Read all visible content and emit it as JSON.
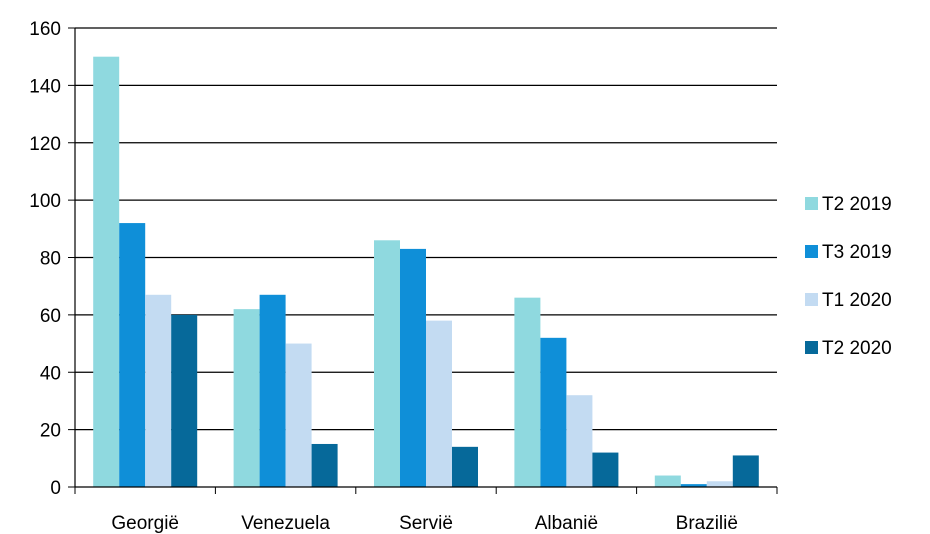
{
  "chart_data": {
    "type": "bar",
    "title": "",
    "xlabel": "",
    "ylabel": "",
    "categories": [
      "Georgië",
      "Venezuela",
      "Servië",
      "Albanië",
      "Brazilië"
    ],
    "series": [
      {
        "name": "T2 2019",
        "color": "#8FD9DF",
        "values": [
          150,
          62,
          86,
          66,
          4
        ]
      },
      {
        "name": "T3 2019",
        "color": "#0F8FD8",
        "values": [
          92,
          67,
          83,
          52,
          1
        ]
      },
      {
        "name": "T1 2020",
        "color": "#C3DBF2",
        "values": [
          67,
          50,
          58,
          32,
          2
        ]
      },
      {
        "name": "T2 2020",
        "color": "#06699A",
        "values": [
          60,
          15,
          14,
          12,
          11
        ]
      }
    ],
    "ylim": [
      0,
      160
    ],
    "yticks": [
      "0",
      "20",
      "40",
      "60",
      "80",
      "100",
      "120",
      "140",
      "160"
    ],
    "grid": true,
    "legend_position": "right"
  }
}
